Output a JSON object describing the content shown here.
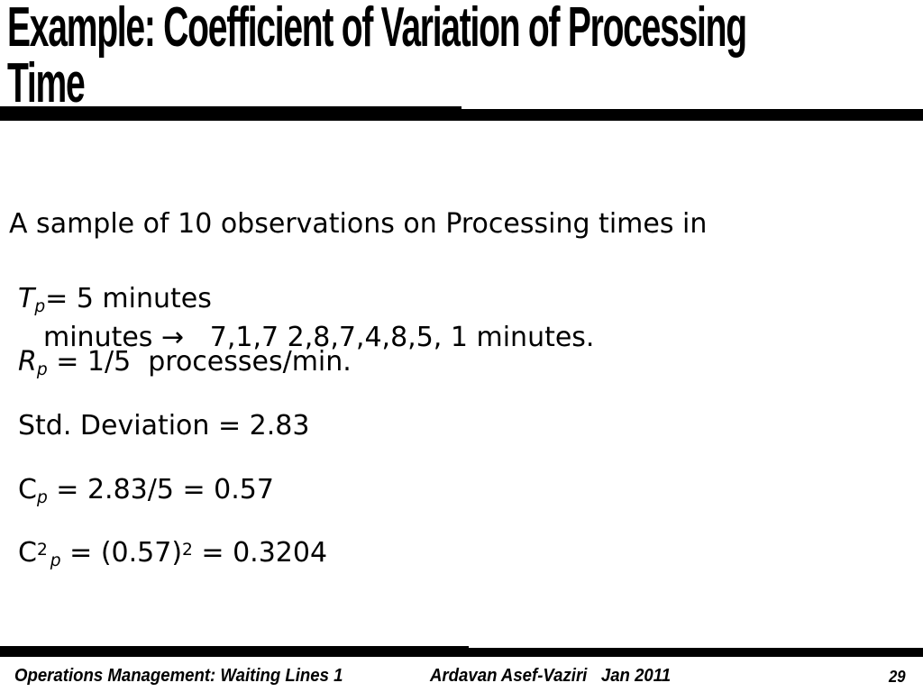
{
  "colors": {
    "background": "#ffffff",
    "text": "#000000",
    "bar": "#000000"
  },
  "title": {
    "line1": "Example: Coefficient of Variation of Processing",
    "line2": "Time"
  },
  "body": {
    "line1": "A sample of 10 observations on Processing times in",
    "line2_prefix": "minutes ",
    "arrow": "→",
    "line2_suffix": "   7,1,7 2,8,7,4,8,5, 1 minutes."
  },
  "math_lines": {
    "line1": {
      "variable": "T",
      "subscript": "p",
      "rest": "= 5 minutes"
    },
    "line2": {
      "variable": "R",
      "subscript": "p",
      "rest": " = 1/5  processes/min."
    },
    "line3": {
      "text": "Std. Deviation = 2.83"
    },
    "line4": {
      "variable": "C",
      "subscript": "p",
      "rest": " = 2.83/5 = 0.57"
    },
    "line5": {
      "variable": "C",
      "superscript": "2",
      "subscript": "p",
      "rest": " = (0.57)",
      "superscript2": "2",
      "rest2": " = 0.3204"
    }
  },
  "footer": {
    "left": "Operations Management: Waiting Lines 1",
    "center": "Ardavan Asef-Vaziri   Jan 2011",
    "page_number": "29"
  }
}
